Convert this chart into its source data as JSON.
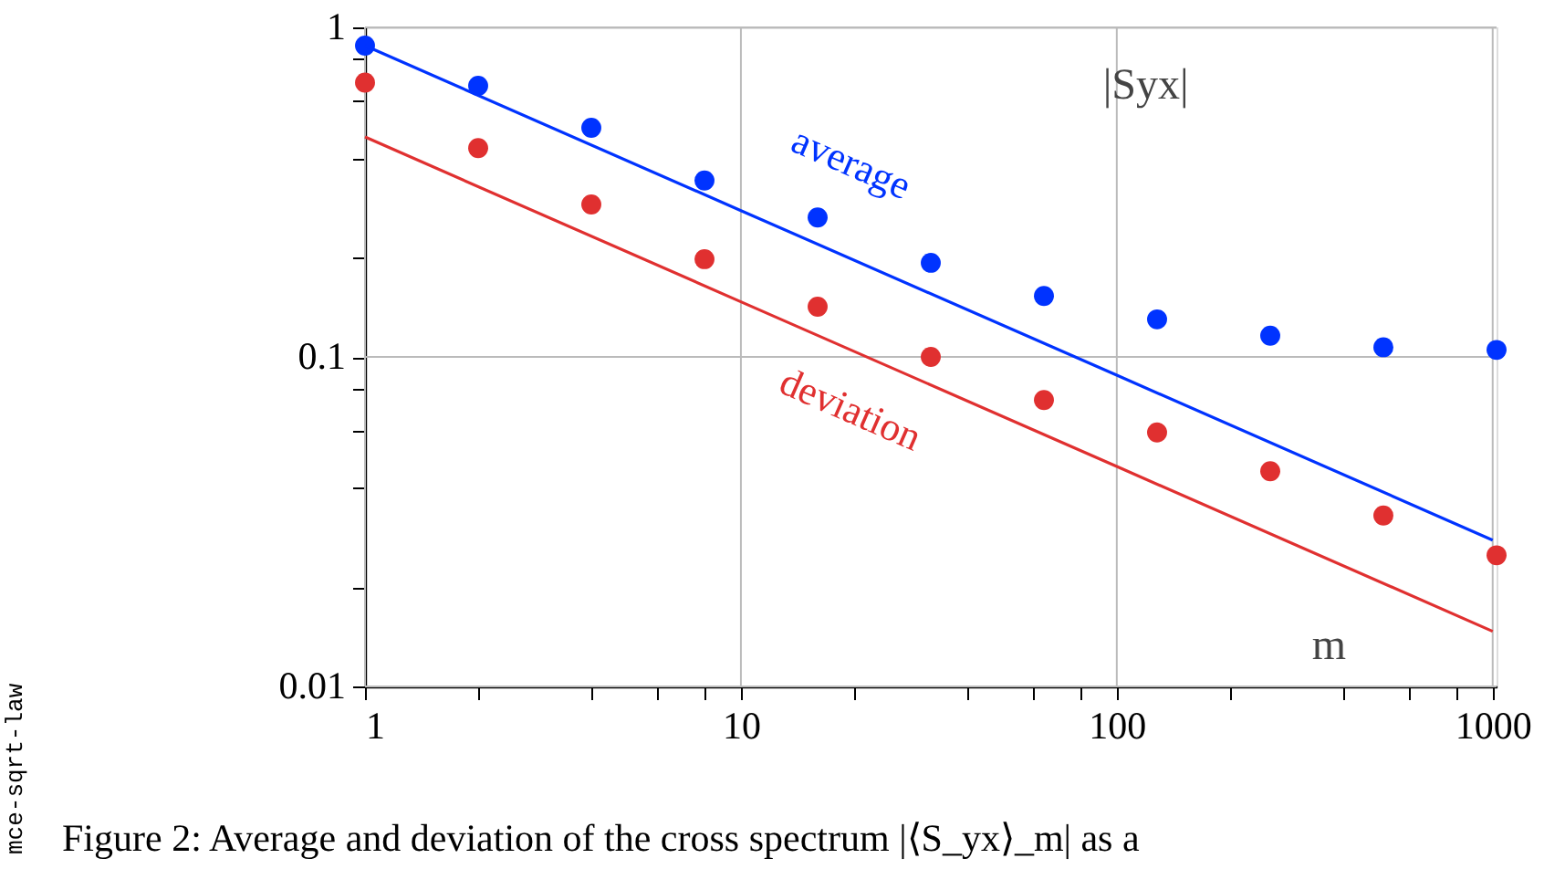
{
  "chart_data": {
    "type": "scatter",
    "xlabel": "m",
    "ylabel": "|Syx|",
    "log": "xy",
    "grid": true,
    "xlim": [
      1,
      1024
    ],
    "ylim": [
      0.01,
      1
    ],
    "xticks": [
      1,
      {
        "value": 2,
        "label": null
      },
      {
        "value": 4,
        "label": null
      },
      {
        "value": 6,
        "label": null
      },
      {
        "value": 8,
        "label": null
      },
      10,
      {
        "value": 20,
        "label": null
      },
      {
        "value": 40,
        "label": null
      },
      {
        "value": 60,
        "label": null
      },
      {
        "value": 80,
        "label": null
      },
      100,
      {
        "value": 200,
        "label": null
      },
      {
        "value": 400,
        "label": null
      },
      {
        "value": 600,
        "label": null
      },
      {
        "value": 800,
        "label": null
      },
      1000
    ],
    "yticks": [
      0.01,
      {
        "value": 0.02,
        "label": null
      },
      {
        "value": 0.04,
        "label": null
      },
      {
        "value": 0.06,
        "label": null
      },
      {
        "value": 0.08,
        "label": null
      },
      0.1,
      {
        "value": 0.2,
        "label": null
      },
      {
        "value": 0.4,
        "label": null
      },
      {
        "value": 0.6,
        "label": null
      },
      {
        "value": 0.8,
        "label": null
      },
      1
    ],
    "x": [
      1,
      2,
      4,
      8,
      16,
      32,
      64,
      128,
      256,
      512,
      1024
    ],
    "series": [
      {
        "color": "#0033ff",
        "marker": "circle",
        "values": [
          0.88,
          0.665,
          0.496,
          0.343,
          0.265,
          0.193,
          0.153,
          0.13,
          0.116,
          0.107,
          0.105
        ]
      },
      {
        "color": "#e03030",
        "marker": "circle",
        "values": [
          0.68,
          0.43,
          0.29,
          0.198,
          0.142,
          0.1,
          0.074,
          0.059,
          0.045,
          0.033,
          0.025
        ]
      },
      {
        "type": "line",
        "name": "average",
        "color": "#0033ff",
        "marker": "none",
        "x": [
          1,
          10,
          100,
          1000
        ],
        "values": [
          0.88,
          0.278,
          0.088,
          0.0278
        ]
      },
      {
        "type": "line",
        "name": "deviation",
        "color": "#e03030",
        "marker": "none",
        "x": [
          1,
          10,
          100,
          1000
        ],
        "values": [
          0.465,
          0.147,
          0.0465,
          0.0147
        ]
      }
    ],
    "annotations": [
      "mce-sqrt-law",
      "Figure 2: Average and deviation of the cross spectrum |⟨S_yx⟩_m| as a"
    ]
  }
}
